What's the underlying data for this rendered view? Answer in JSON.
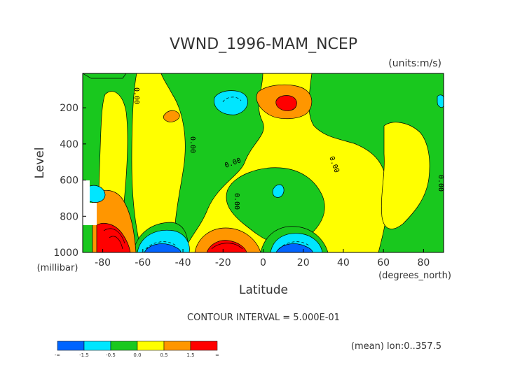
{
  "chart_data": {
    "type": "heatmap",
    "title": "VWND_1996-MAM_NCEP",
    "units": "(units:m/s)",
    "xlabel": "Latitude",
    "x_units": "(degrees_north)",
    "ylabel": "Level",
    "y_units": "(millibar)",
    "xlim": [
      -90,
      90
    ],
    "ylim": [
      1000,
      10
    ],
    "x_ticks": [
      -80,
      -60,
      -40,
      -20,
      0,
      20,
      40,
      60,
      80
    ],
    "y_ticks": [
      200,
      400,
      600,
      800,
      1000
    ],
    "contour_interval_text": "CONTOUR INTERVAL = 5.000E-01",
    "footnote": "(mean) lon:0..357.5",
    "contour_labels": [
      "0.00",
      "0.00",
      "0.00",
      "0.00",
      "0.00",
      "0.00"
    ],
    "colorbar": {
      "labels": [
        "-∞",
        "-1.5",
        "-0.5",
        "0.0",
        "0.5",
        "1.5",
        "∞"
      ],
      "colors": [
        "#0064ff",
        "#00e6ff",
        "#19c81e",
        "#ffff00",
        "#ff9600",
        "#ff0000"
      ]
    }
  }
}
